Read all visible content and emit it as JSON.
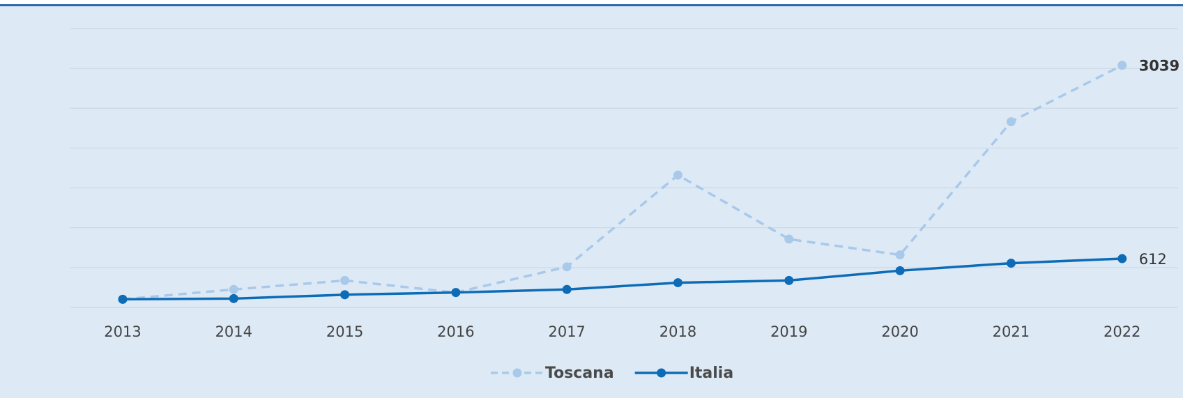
{
  "chart_data": {
    "type": "line",
    "categories": [
      "2013",
      "2014",
      "2015",
      "2016",
      "2017",
      "2018",
      "2019",
      "2020",
      "2021",
      "2022"
    ],
    "series": [
      {
        "name": "Toscana",
        "color": "#a9c9ea",
        "dashed": true,
        "values": [
          102,
          225,
          338,
          187,
          509,
          1661,
          857,
          659,
          2331,
          3039
        ]
      },
      {
        "name": "Italia",
        "color": "#0e6cb7",
        "dashed": false,
        "values": [
          102,
          111,
          159,
          187,
          225,
          310,
          338,
          461,
          555,
          612
        ]
      }
    ],
    "ylim": [
      0,
      3500
    ],
    "yticks": [
      0,
      500,
      1000,
      1500,
      2000,
      2500,
      3000,
      3500
    ],
    "grid": true
  }
}
